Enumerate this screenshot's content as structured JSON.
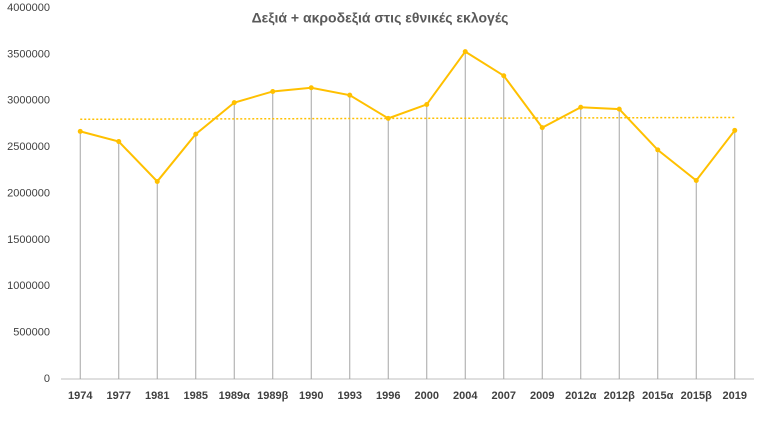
{
  "chart_data": {
    "type": "line",
    "title": "Δεξιά + ακροδεξιά στις εθνικές εκλογές",
    "categories": [
      "1974",
      "1977",
      "1981",
      "1985",
      "1989α",
      "1989β",
      "1990",
      "1993",
      "1996",
      "2000",
      "2004",
      "2007",
      "2009",
      "2012α",
      "2012β",
      "2015α",
      "2015β",
      "2019"
    ],
    "values": [
      2670000,
      2560000,
      2130000,
      2640000,
      2980000,
      3100000,
      3140000,
      3060000,
      2810000,
      2960000,
      3530000,
      3270000,
      2710000,
      2930000,
      2910000,
      2470000,
      2140000,
      2680000
    ],
    "color": "#ffc000",
    "drop_lines": true,
    "trendline": [
      2800000,
      2820000
    ],
    "ylim": [
      0,
      4000000
    ],
    "yticks": [
      0,
      500000,
      1000000,
      1500000,
      2000000,
      2500000,
      3000000,
      3500000,
      4000000
    ]
  }
}
